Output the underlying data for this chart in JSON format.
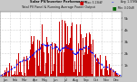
{
  "bg_color": "#c8c8c8",
  "plot_bg_color": "#ffffff",
  "bar_color": "#cc0000",
  "avg_line_color": "#0000ff",
  "grid_color": "#aaaaaa",
  "ylabel_right": [
    "1k",
    "2k",
    "3k",
    "4k",
    "5k"
  ],
  "ylabel_right_vals": [
    1000,
    2000,
    3000,
    4000,
    5000
  ],
  "ymax": 5500,
  "num_points": 365,
  "title1": "Solar PV/Inverter Performance",
  "title2": "Total PV Panel & Running Average Power Output"
}
